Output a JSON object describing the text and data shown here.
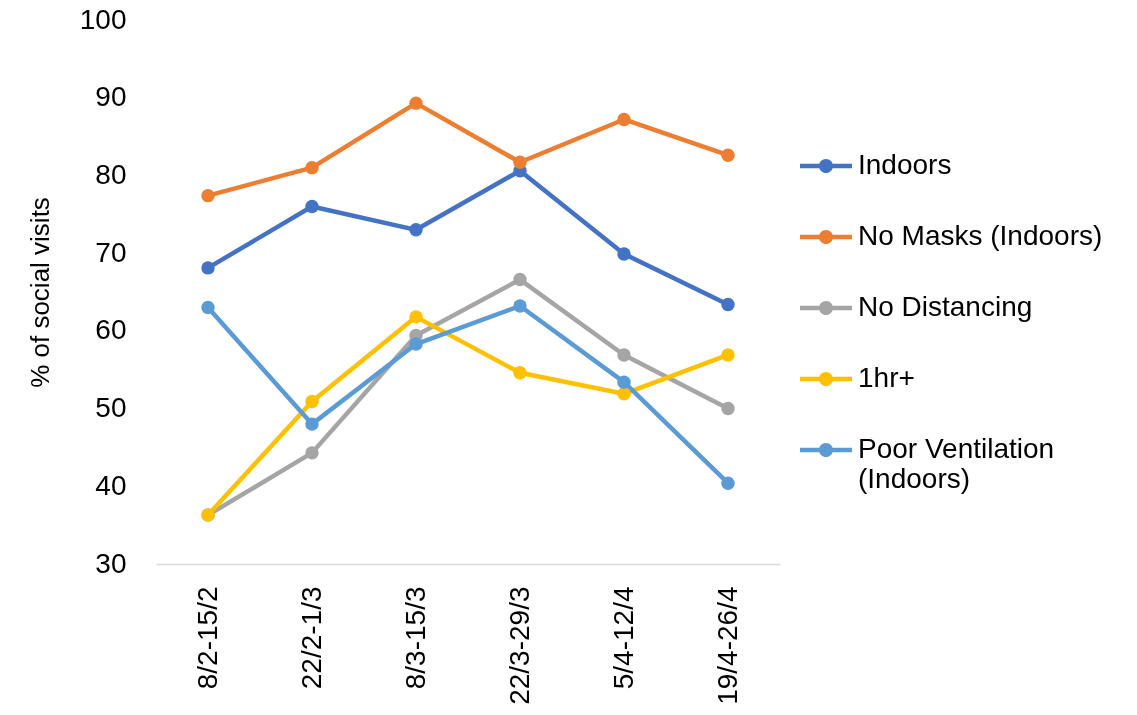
{
  "chart_data": {
    "type": "line",
    "ylabel": "% of social visits",
    "categories": [
      "8/2-15/2",
      "22/2-1/3",
      "8/3-15/3",
      "22/3-29/3",
      "5/4-12/4",
      "19/4-26/4"
    ],
    "series": [
      {
        "name": "Indoors",
        "color": "#4472c4",
        "values": [
          68.1,
          76.0,
          73.0,
          80.6,
          69.9,
          63.4
        ]
      },
      {
        "name": "No Masks (Indoors)",
        "color": "#ed7d31",
        "values": [
          77.4,
          81.0,
          89.3,
          81.7,
          87.2,
          82.6
        ]
      },
      {
        "name": "No Distancing",
        "color": "#a5a5a5",
        "values": [
          36.3,
          44.3,
          59.4,
          66.6,
          56.9,
          50.0
        ]
      },
      {
        "name": "1hr+",
        "color": "#ffc000",
        "values": [
          36.3,
          50.9,
          61.8,
          54.6,
          51.9,
          56.9
        ]
      },
      {
        "name": "Poor Ventilation (Indoors)",
        "color": "#5b9bd5",
        "values": [
          63.0,
          48.0,
          58.3,
          63.2,
          53.4,
          40.4
        ]
      }
    ],
    "ylim": [
      30,
      100
    ],
    "yticks": [
      30,
      40,
      50,
      60,
      70,
      80,
      90,
      100
    ],
    "grid": false,
    "legend": "right",
    "marker": "circle",
    "line_style": "solid"
  }
}
